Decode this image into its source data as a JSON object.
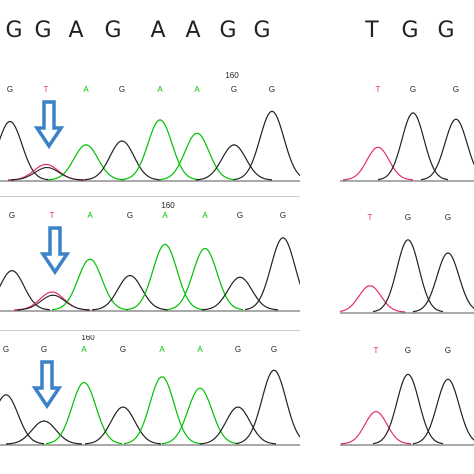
{
  "header": {
    "left_bases": [
      "G",
      "G",
      "A",
      "G",
      "A",
      "A",
      "G",
      "G"
    ],
    "right_bases": [
      "T",
      "G",
      "G"
    ]
  },
  "colors": {
    "A": "#00c000",
    "T": "#e0306b",
    "G": "#222222",
    "C": "#3050e0",
    "arrow": "#3c82c8",
    "divider": "#cccccc"
  },
  "chart_data": [
    {
      "type": "chromatogram",
      "position_marker": "160",
      "base_calls": [
        "G",
        "T",
        "A",
        "G",
        "A",
        "A",
        "G",
        "G"
      ],
      "peaks": [
        {
          "base": "G",
          "height": 0.75
        },
        {
          "base": "T",
          "height": 0.2
        },
        {
          "base": "A",
          "height": 0.45
        },
        {
          "base": "G",
          "height": 0.5
        },
        {
          "base": "A",
          "height": 0.77
        },
        {
          "base": "A",
          "height": 0.6
        },
        {
          "base": "G",
          "height": 0.45
        },
        {
          "base": "G",
          "height": 0.88
        }
      ],
      "secondary_peaks": [
        {
          "index": 1,
          "base": "G",
          "height": 0.16
        }
      ],
      "arrow_at": 1
    },
    {
      "type": "chromatogram",
      "right_part_of": 0,
      "base_calls": [
        "T",
        "G",
        "G"
      ],
      "peaks": [
        {
          "base": "T",
          "height": 0.42
        },
        {
          "base": "G",
          "height": 0.86
        },
        {
          "base": "G",
          "height": 0.78
        }
      ]
    },
    {
      "type": "chromatogram",
      "position_marker": "160",
      "base_calls": [
        "G",
        "T",
        "A",
        "G",
        "A",
        "A",
        "G",
        "G"
      ],
      "peaks": [
        {
          "base": "G",
          "height": 0.48
        },
        {
          "base": "T",
          "height": 0.22
        },
        {
          "base": "A",
          "height": 0.62
        },
        {
          "base": "G",
          "height": 0.42
        },
        {
          "base": "A",
          "height": 0.8
        },
        {
          "base": "A",
          "height": 0.75
        },
        {
          "base": "G",
          "height": 0.4
        },
        {
          "base": "G",
          "height": 0.88
        }
      ],
      "secondary_peaks": [
        {
          "index": 1,
          "base": "G",
          "height": 0.18
        }
      ],
      "arrow_at": 1
    },
    {
      "type": "chromatogram",
      "right_part_of": 2,
      "base_calls": [
        "T",
        "G",
        "G"
      ],
      "peaks": [
        {
          "base": "T",
          "height": 0.32
        },
        {
          "base": "G",
          "height": 0.88
        },
        {
          "base": "G",
          "height": 0.72
        }
      ]
    },
    {
      "type": "chromatogram",
      "position_marker": "160",
      "base_calls": [
        "G",
        "G",
        "A",
        "G",
        "A",
        "A",
        "G",
        "G"
      ],
      "peaks": [
        {
          "base": "G",
          "height": 0.6
        },
        {
          "base": "G",
          "height": 0.28
        },
        {
          "base": "A",
          "height": 0.75
        },
        {
          "base": "G",
          "height": 0.45
        },
        {
          "base": "A",
          "height": 0.82
        },
        {
          "base": "A",
          "height": 0.68
        },
        {
          "base": "G",
          "height": 0.45
        },
        {
          "base": "G",
          "height": 0.9
        }
      ],
      "arrow_at": 1
    },
    {
      "type": "chromatogram",
      "right_part_of": 4,
      "base_calls": [
        "T",
        "G",
        "G"
      ],
      "peaks": [
        {
          "base": "T",
          "height": 0.4
        },
        {
          "base": "G",
          "height": 0.86
        },
        {
          "base": "G",
          "height": 0.8
        }
      ]
    }
  ]
}
